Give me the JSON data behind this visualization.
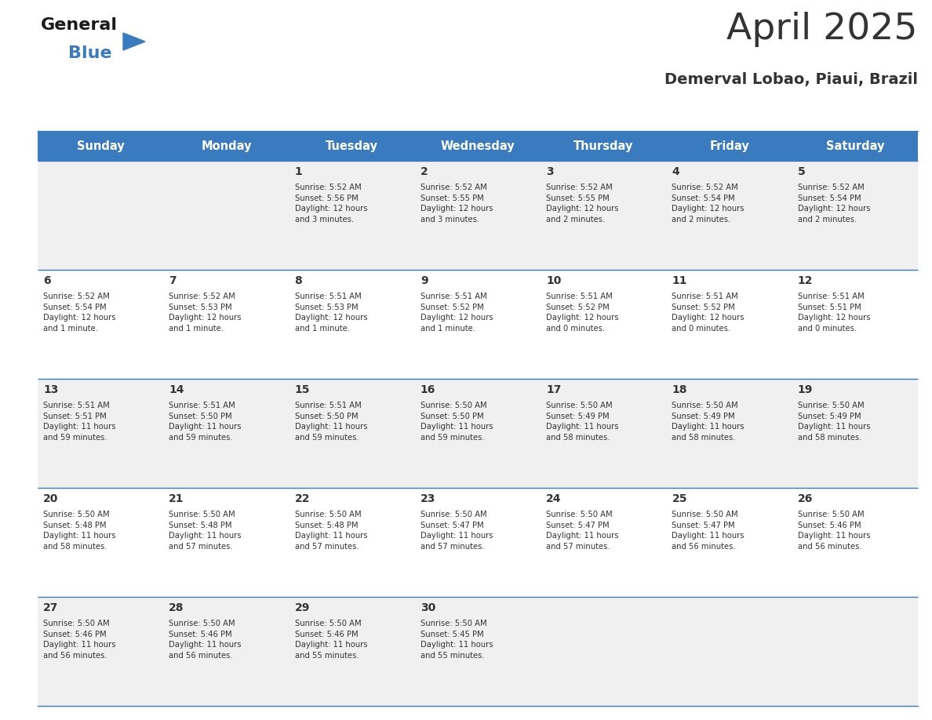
{
  "title": "April 2025",
  "subtitle": "Demerval Lobao, Piaui, Brazil",
  "header_bg_color": "#3a7abf",
  "header_text_color": "#ffffff",
  "row_colors": [
    "#f0f0f0",
    "#ffffff"
  ],
  "border_color": "#3a7abf",
  "text_color": "#333333",
  "days_of_week": [
    "Sunday",
    "Monday",
    "Tuesday",
    "Wednesday",
    "Thursday",
    "Friday",
    "Saturday"
  ],
  "calendar": [
    [
      {
        "day": "",
        "info": ""
      },
      {
        "day": "",
        "info": ""
      },
      {
        "day": "1",
        "info": "Sunrise: 5:52 AM\nSunset: 5:56 PM\nDaylight: 12 hours\nand 3 minutes."
      },
      {
        "day": "2",
        "info": "Sunrise: 5:52 AM\nSunset: 5:55 PM\nDaylight: 12 hours\nand 3 minutes."
      },
      {
        "day": "3",
        "info": "Sunrise: 5:52 AM\nSunset: 5:55 PM\nDaylight: 12 hours\nand 2 minutes."
      },
      {
        "day": "4",
        "info": "Sunrise: 5:52 AM\nSunset: 5:54 PM\nDaylight: 12 hours\nand 2 minutes."
      },
      {
        "day": "5",
        "info": "Sunrise: 5:52 AM\nSunset: 5:54 PM\nDaylight: 12 hours\nand 2 minutes."
      }
    ],
    [
      {
        "day": "6",
        "info": "Sunrise: 5:52 AM\nSunset: 5:54 PM\nDaylight: 12 hours\nand 1 minute."
      },
      {
        "day": "7",
        "info": "Sunrise: 5:52 AM\nSunset: 5:53 PM\nDaylight: 12 hours\nand 1 minute."
      },
      {
        "day": "8",
        "info": "Sunrise: 5:51 AM\nSunset: 5:53 PM\nDaylight: 12 hours\nand 1 minute."
      },
      {
        "day": "9",
        "info": "Sunrise: 5:51 AM\nSunset: 5:52 PM\nDaylight: 12 hours\nand 1 minute."
      },
      {
        "day": "10",
        "info": "Sunrise: 5:51 AM\nSunset: 5:52 PM\nDaylight: 12 hours\nand 0 minutes."
      },
      {
        "day": "11",
        "info": "Sunrise: 5:51 AM\nSunset: 5:52 PM\nDaylight: 12 hours\nand 0 minutes."
      },
      {
        "day": "12",
        "info": "Sunrise: 5:51 AM\nSunset: 5:51 PM\nDaylight: 12 hours\nand 0 minutes."
      }
    ],
    [
      {
        "day": "13",
        "info": "Sunrise: 5:51 AM\nSunset: 5:51 PM\nDaylight: 11 hours\nand 59 minutes."
      },
      {
        "day": "14",
        "info": "Sunrise: 5:51 AM\nSunset: 5:50 PM\nDaylight: 11 hours\nand 59 minutes."
      },
      {
        "day": "15",
        "info": "Sunrise: 5:51 AM\nSunset: 5:50 PM\nDaylight: 11 hours\nand 59 minutes."
      },
      {
        "day": "16",
        "info": "Sunrise: 5:50 AM\nSunset: 5:50 PM\nDaylight: 11 hours\nand 59 minutes."
      },
      {
        "day": "17",
        "info": "Sunrise: 5:50 AM\nSunset: 5:49 PM\nDaylight: 11 hours\nand 58 minutes."
      },
      {
        "day": "18",
        "info": "Sunrise: 5:50 AM\nSunset: 5:49 PM\nDaylight: 11 hours\nand 58 minutes."
      },
      {
        "day": "19",
        "info": "Sunrise: 5:50 AM\nSunset: 5:49 PM\nDaylight: 11 hours\nand 58 minutes."
      }
    ],
    [
      {
        "day": "20",
        "info": "Sunrise: 5:50 AM\nSunset: 5:48 PM\nDaylight: 11 hours\nand 58 minutes."
      },
      {
        "day": "21",
        "info": "Sunrise: 5:50 AM\nSunset: 5:48 PM\nDaylight: 11 hours\nand 57 minutes."
      },
      {
        "day": "22",
        "info": "Sunrise: 5:50 AM\nSunset: 5:48 PM\nDaylight: 11 hours\nand 57 minutes."
      },
      {
        "day": "23",
        "info": "Sunrise: 5:50 AM\nSunset: 5:47 PM\nDaylight: 11 hours\nand 57 minutes."
      },
      {
        "day": "24",
        "info": "Sunrise: 5:50 AM\nSunset: 5:47 PM\nDaylight: 11 hours\nand 57 minutes."
      },
      {
        "day": "25",
        "info": "Sunrise: 5:50 AM\nSunset: 5:47 PM\nDaylight: 11 hours\nand 56 minutes."
      },
      {
        "day": "26",
        "info": "Sunrise: 5:50 AM\nSunset: 5:46 PM\nDaylight: 11 hours\nand 56 minutes."
      }
    ],
    [
      {
        "day": "27",
        "info": "Sunrise: 5:50 AM\nSunset: 5:46 PM\nDaylight: 11 hours\nand 56 minutes."
      },
      {
        "day": "28",
        "info": "Sunrise: 5:50 AM\nSunset: 5:46 PM\nDaylight: 11 hours\nand 56 minutes."
      },
      {
        "day": "29",
        "info": "Sunrise: 5:50 AM\nSunset: 5:46 PM\nDaylight: 11 hours\nand 55 minutes."
      },
      {
        "day": "30",
        "info": "Sunrise: 5:50 AM\nSunset: 5:45 PM\nDaylight: 11 hours\nand 55 minutes."
      },
      {
        "day": "",
        "info": ""
      },
      {
        "day": "",
        "info": ""
      },
      {
        "day": "",
        "info": ""
      }
    ]
  ],
  "logo_text_general": "General",
  "logo_text_blue": "Blue",
  "logo_color_general": "#1a1a1a",
  "logo_color_blue": "#3a7abf",
  "logo_triangle_color": "#3a7abf",
  "fig_width": 11.88,
  "fig_height": 9.18,
  "dpi": 100
}
